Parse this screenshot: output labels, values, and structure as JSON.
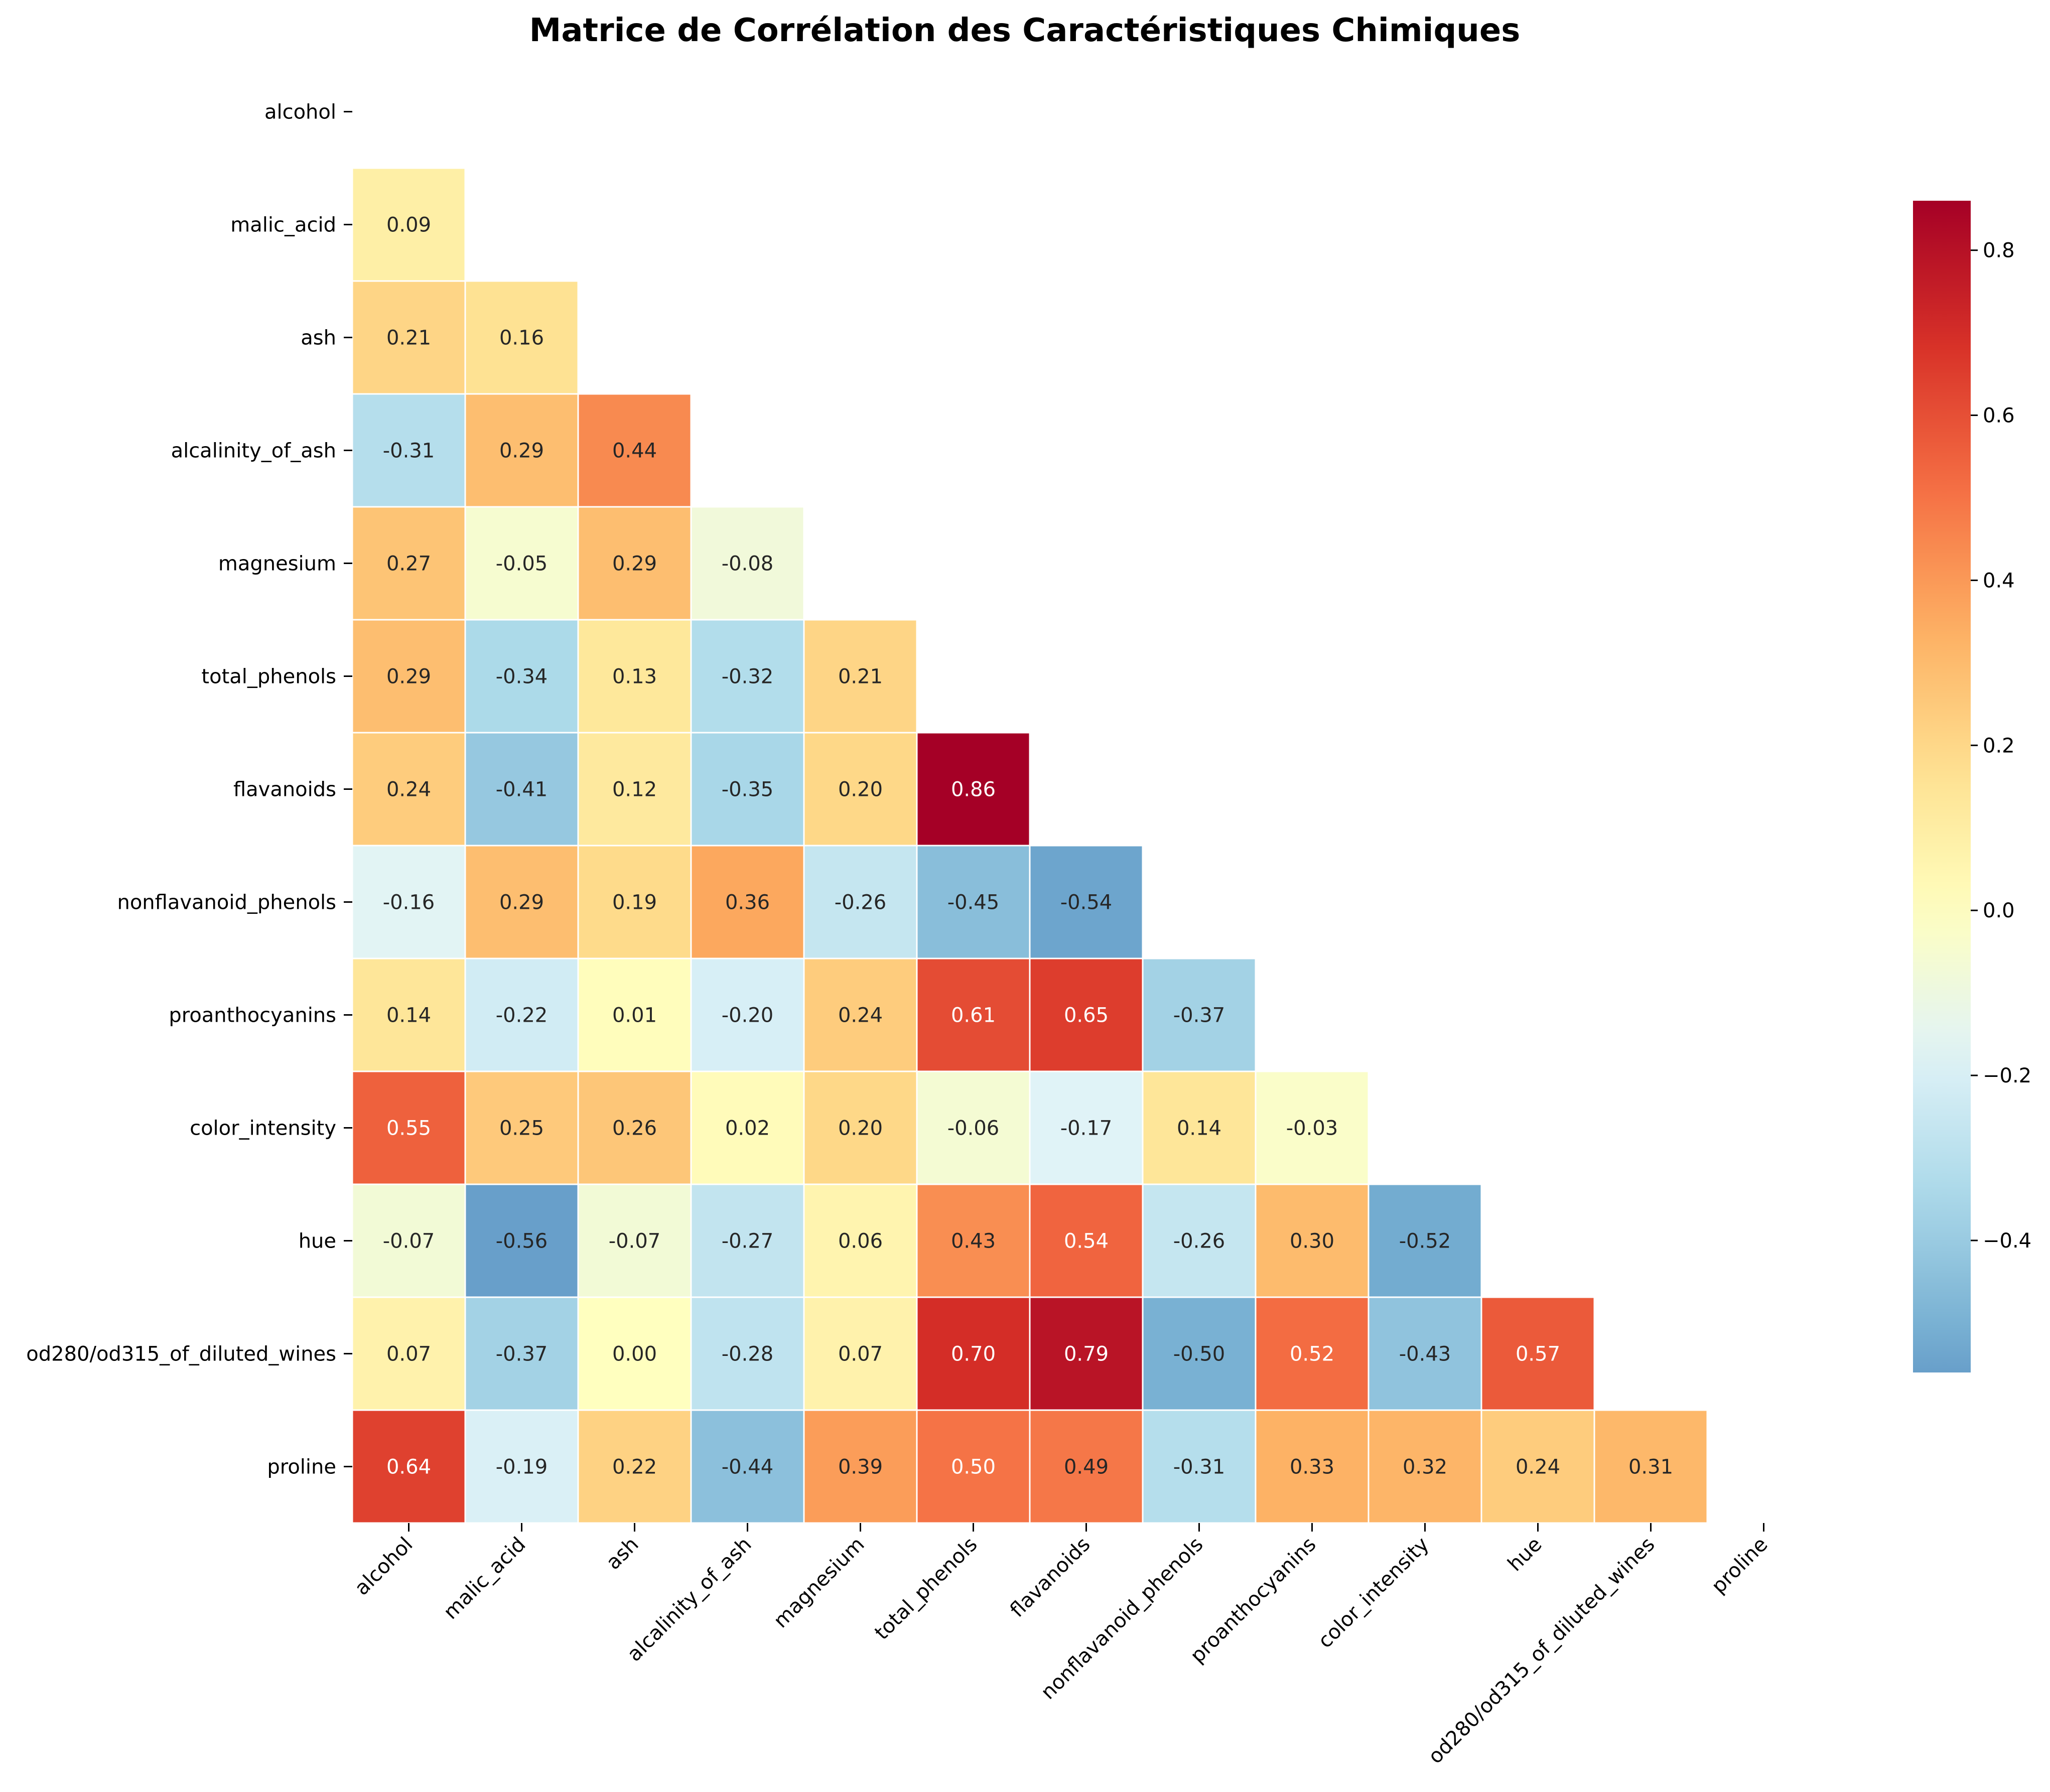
{
  "chart_data": {
    "type": "heatmap",
    "title": "Matrice de Corrélation des Caractéristiques Chimiques",
    "xlabel": "",
    "ylabel": "",
    "mask": "upper-triangle-including-diagonal",
    "categories": [
      "alcohol",
      "malic_acid",
      "ash",
      "alcalinity_of_ash",
      "magnesium",
      "total_phenols",
      "flavanoids",
      "nonflavanoid_phenols",
      "proanthocyanins",
      "color_intensity",
      "hue",
      "od280/od315_of_diluted_wines",
      "proline"
    ],
    "values": [
      [
        null,
        null,
        null,
        null,
        null,
        null,
        null,
        null,
        null,
        null,
        null,
        null,
        null
      ],
      [
        0.09,
        null,
        null,
        null,
        null,
        null,
        null,
        null,
        null,
        null,
        null,
        null,
        null
      ],
      [
        0.21,
        0.16,
        null,
        null,
        null,
        null,
        null,
        null,
        null,
        null,
        null,
        null,
        null
      ],
      [
        -0.31,
        0.29,
        0.44,
        null,
        null,
        null,
        null,
        null,
        null,
        null,
        null,
        null,
        null
      ],
      [
        0.27,
        -0.05,
        0.29,
        -0.08,
        null,
        null,
        null,
        null,
        null,
        null,
        null,
        null,
        null
      ],
      [
        0.29,
        -0.34,
        0.13,
        -0.32,
        0.21,
        null,
        null,
        null,
        null,
        null,
        null,
        null,
        null
      ],
      [
        0.24,
        -0.41,
        0.12,
        -0.35,
        0.2,
        0.86,
        null,
        null,
        null,
        null,
        null,
        null,
        null
      ],
      [
        -0.16,
        0.29,
        0.19,
        0.36,
        -0.26,
        -0.45,
        -0.54,
        null,
        null,
        null,
        null,
        null,
        null
      ],
      [
        0.14,
        -0.22,
        0.01,
        -0.2,
        0.24,
        0.61,
        0.65,
        -0.37,
        null,
        null,
        null,
        null,
        null
      ],
      [
        0.55,
        0.25,
        0.26,
        0.02,
        0.2,
        -0.06,
        -0.17,
        0.14,
        -0.03,
        null,
        null,
        null,
        null
      ],
      [
        -0.07,
        -0.56,
        -0.07,
        -0.27,
        0.06,
        0.43,
        0.54,
        -0.26,
        0.3,
        -0.52,
        null,
        null,
        null
      ],
      [
        0.07,
        -0.37,
        0.0,
        -0.28,
        0.07,
        0.7,
        0.79,
        -0.5,
        0.52,
        -0.43,
        0.57,
        null,
        null
      ],
      [
        0.64,
        -0.19,
        0.22,
        -0.44,
        0.39,
        0.5,
        0.49,
        -0.31,
        0.33,
        0.32,
        0.24,
        0.31,
        null
      ]
    ],
    "colormap": "RdYlBu_r",
    "center": 0,
    "vmin": -0.56,
    "vmax": 0.86,
    "colorbar": {
      "ticks": [
        -0.4,
        -0.2,
        0.0,
        0.2,
        0.4,
        0.6,
        0.8
      ],
      "tick_labels": [
        "−0.4",
        "−0.2",
        "0.0",
        "0.2",
        "0.4",
        "0.6",
        "0.8"
      ],
      "position": "right"
    },
    "cell_border_color": "#ffffff"
  },
  "colors": {
    "background": "#ffffff",
    "text_dark": "#262626",
    "text_light": "#ffffff",
    "axis": "#000000"
  }
}
